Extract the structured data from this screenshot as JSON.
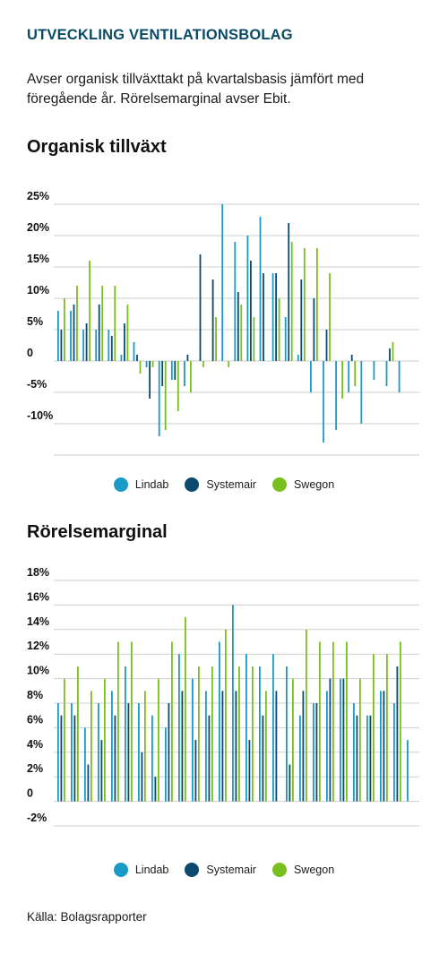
{
  "header": {
    "kicker": "UTVECKLING VENTILATIONSBOLAG",
    "intro": "Avser organisk tillväxttakt på kvartalsbasis jämfört med föregående år. Rörelsemarginal avser Ebit."
  },
  "source": "Källa: Bolagsrapporter",
  "colors": {
    "Lindab": "#1a9bc7",
    "Systemair": "#0b4a6e",
    "Swegon": "#79bf1e",
    "grid": "#cfcfcf"
  },
  "chart_data": [
    {
      "type": "bar",
      "title": "Organisk tillväxt",
      "ylim": [
        -15,
        25
      ],
      "yticks": [
        25,
        20,
        15,
        10,
        5,
        0,
        -5,
        -10
      ],
      "ytick_labels": [
        "25%",
        "20%",
        "15%",
        "10%",
        "5%",
        "0",
        "-5%",
        "-10%"
      ],
      "legend_position": "bottom-center",
      "series": [
        {
          "name": "Lindab",
          "values": [
            8,
            8,
            5,
            5,
            5,
            1,
            3,
            -1,
            -12,
            -3,
            -4,
            0,
            0,
            25,
            19,
            20,
            23,
            14,
            7,
            1,
            -5,
            -13,
            -11,
            -5,
            -10,
            -3,
            -4,
            -5
          ]
        },
        {
          "name": "Systemair",
          "values": [
            5,
            9,
            6,
            9,
            4,
            6,
            1,
            -6,
            -4,
            -3,
            1,
            17,
            13,
            0,
            11,
            16,
            14,
            14,
            22,
            13,
            10,
            5,
            0,
            1,
            0,
            0,
            2,
            0
          ]
        },
        {
          "name": "Swegon",
          "values": [
            10,
            12,
            16,
            12,
            12,
            9,
            -2,
            -1,
            -11,
            -8,
            -5,
            -1,
            7,
            -1,
            9,
            7,
            0,
            10,
            19,
            18,
            18,
            14,
            -6,
            -4,
            0,
            0,
            3,
            0
          ]
        }
      ]
    },
    {
      "type": "bar",
      "title": "Rörelsemarginal",
      "ylim": [
        -2,
        18
      ],
      "yticks": [
        18,
        16,
        14,
        12,
        10,
        8,
        6,
        4,
        2,
        0,
        -2
      ],
      "ytick_labels": [
        "18%",
        "16%",
        "14%",
        "12%",
        "10%",
        "8%",
        "6%",
        "4%",
        "2%",
        "0",
        "-2%"
      ],
      "legend_position": "bottom-center",
      "series": [
        {
          "name": "Lindab",
          "values": [
            8,
            8,
            6,
            8,
            9,
            11,
            8,
            7,
            6,
            12,
            10,
            9,
            13,
            16,
            12,
            11,
            12,
            11,
            7,
            8,
            9,
            10,
            8,
            7,
            9,
            8,
            5
          ]
        },
        {
          "name": "Systemair",
          "values": [
            7,
            7,
            3,
            5,
            7,
            8,
            4,
            2,
            8,
            9,
            5,
            7,
            9,
            9,
            5,
            7,
            9,
            3,
            9,
            8,
            10,
            10,
            7,
            7,
            9,
            11,
            0
          ]
        },
        {
          "name": "Swegon",
          "values": [
            10,
            11,
            9,
            10,
            13,
            13,
            9,
            10,
            13,
            15,
            11,
            11,
            14,
            11,
            11,
            9,
            0,
            10,
            14,
            13,
            13,
            13,
            10,
            12,
            12,
            13,
            0
          ]
        }
      ]
    }
  ]
}
